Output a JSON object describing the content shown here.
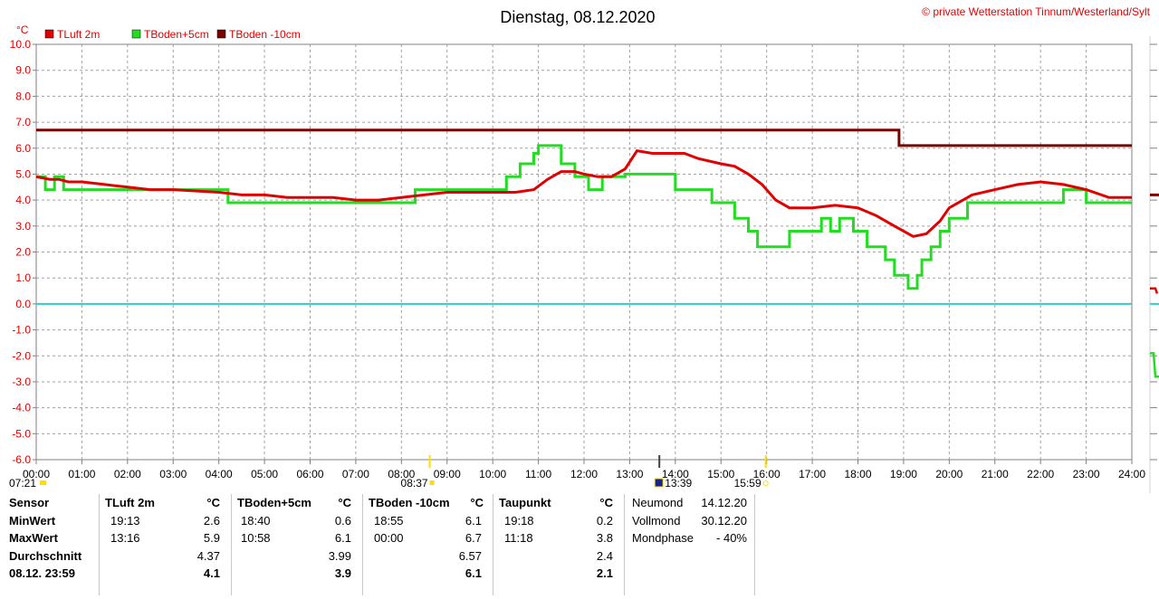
{
  "header": {
    "title": "Dienstag, 08.12.2020",
    "copyright": "© private Wetterstation Tinnum/Westerland/Sylt"
  },
  "colors": {
    "tluft": "#e00000",
    "tboden5": "#22dd22",
    "tboden10": "#7a0000",
    "zero_line": "#33cccc",
    "grid": "#a0a0a0",
    "sun_marker": "#ffdd00"
  },
  "chart_data": {
    "type": "line",
    "title": "Dienstag, 08.12.2020",
    "ylabel": "°C",
    "ylim": [
      -6,
      10
    ],
    "xlim": [
      0,
      24
    ],
    "yticks": [
      "10.0",
      "9.0",
      "8.0",
      "7.0",
      "6.0",
      "5.0",
      "4.0",
      "3.0",
      "2.0",
      "1.0",
      "0.0",
      "-1.0",
      "-2.0",
      "-3.0",
      "-4.0",
      "-5.0",
      "-6.0"
    ],
    "xticks": [
      "00:00",
      "01:00",
      "02:00",
      "03:00",
      "04:00",
      "05:00",
      "06:00",
      "07:00",
      "08:00",
      "09:00",
      "10:00",
      "11:00",
      "12:00",
      "13:00",
      "14:00",
      "15:00",
      "16:00",
      "17:00",
      "18:00",
      "19:00",
      "20:00",
      "21:00",
      "22:00",
      "23:00",
      "24:00"
    ],
    "grid": true,
    "legend": "top-left",
    "zero_line": 0.0,
    "markers": [
      {
        "label": "07:21",
        "hour": 0.0
      },
      {
        "label": "08:37",
        "hour": 8.62
      },
      {
        "label": "13:39",
        "hour": 13.65
      },
      {
        "label": "15:59",
        "hour": 15.98
      }
    ],
    "series": [
      {
        "name": "TLuft 2m",
        "x": [
          0,
          0.3,
          0.5,
          0.7,
          1.0,
          1.5,
          2.0,
          2.5,
          3.0,
          4.0,
          4.5,
          5.0,
          5.5,
          6.0,
          6.5,
          7.0,
          7.5,
          8.0,
          8.5,
          9.0,
          9.5,
          10.0,
          10.5,
          10.9,
          11.2,
          11.5,
          11.8,
          12.0,
          12.3,
          12.6,
          12.9,
          13.16,
          13.5,
          14.0,
          14.2,
          14.5,
          15.0,
          15.3,
          15.6,
          15.9,
          16.2,
          16.5,
          17.0,
          17.5,
          18.0,
          18.4,
          18.8,
          19.21,
          19.5,
          19.8,
          20.0,
          20.5,
          21.0,
          21.5,
          22.0,
          22.5,
          23.0,
          23.5,
          24.0
        ],
        "y": [
          4.9,
          4.8,
          4.8,
          4.7,
          4.7,
          4.6,
          4.5,
          4.4,
          4.4,
          4.3,
          4.2,
          4.2,
          4.1,
          4.1,
          4.1,
          4.0,
          4.0,
          4.1,
          4.2,
          4.3,
          4.3,
          4.3,
          4.3,
          4.4,
          4.8,
          5.1,
          5.1,
          5.0,
          4.9,
          4.9,
          5.2,
          5.9,
          5.8,
          5.8,
          5.8,
          5.6,
          5.4,
          5.3,
          5.0,
          4.6,
          4.0,
          3.7,
          3.7,
          3.8,
          3.7,
          3.4,
          3.0,
          2.6,
          2.7,
          3.2,
          3.7,
          4.2,
          4.4,
          4.6,
          4.7,
          4.6,
          4.4,
          4.1,
          4.1
        ]
      },
      {
        "name": "TBoden+5cm",
        "step": true,
        "x": [
          0,
          0.2,
          0.4,
          0.6,
          0.8,
          4.2,
          4.5,
          8.3,
          10.3,
          10.6,
          10.9,
          11.0,
          11.5,
          11.8,
          12.1,
          12.2,
          12.4,
          12.9,
          13.8,
          14.0,
          14.8,
          15.3,
          15.6,
          15.8,
          16.1,
          16.5,
          17.0,
          17.2,
          17.4,
          17.6,
          17.9,
          18.2,
          18.4,
          18.6,
          18.8,
          19.1,
          19.2,
          19.3,
          19.4,
          19.6,
          19.8,
          20.0,
          20.4,
          22.5,
          23.0,
          24.0
        ],
        "y": [
          4.9,
          4.4,
          4.9,
          4.4,
          4.4,
          3.9,
          3.9,
          4.4,
          4.9,
          5.4,
          5.8,
          6.1,
          5.4,
          4.9,
          4.4,
          4.4,
          4.9,
          5.0,
          5.0,
          4.4,
          3.9,
          3.3,
          2.8,
          2.2,
          2.2,
          2.8,
          2.8,
          3.3,
          2.8,
          3.3,
          2.8,
          2.2,
          2.2,
          1.7,
          1.1,
          0.6,
          0.6,
          1.1,
          1.7,
          2.2,
          2.8,
          3.3,
          3.9,
          4.4,
          3.9,
          3.9
        ]
      },
      {
        "name": "TBoden -10cm",
        "step": true,
        "x": [
          0,
          18.9,
          24.0
        ],
        "y": [
          6.7,
          6.1,
          6.1
        ]
      }
    ]
  },
  "table": {
    "sensor": {
      "header": "Sensor",
      "rows": [
        "MinWert",
        "MaxWert",
        "Durchschnitt",
        "08.12. 23:59"
      ]
    },
    "tluft": {
      "header": "TLuft 2m",
      "unit": "°C",
      "min_time": "19:13",
      "min_val": "2.6",
      "max_time": "13:16",
      "max_val": "5.9",
      "avg": "4.37",
      "current": "4.1"
    },
    "tboden5": {
      "header": "TBoden+5cm",
      "unit": "°C",
      "min_time": "18:40",
      "min_val": "0.6",
      "max_time": "10:58",
      "max_val": "6.1",
      "avg": "3.99",
      "current": "3.9"
    },
    "tboden10": {
      "header": "TBoden -10cm",
      "unit": "°C",
      "min_time": "18:55",
      "min_val": "6.1",
      "max_time": "00:00",
      "max_val": "6.7",
      "avg": "6.57",
      "current": "6.1"
    },
    "taupunkt": {
      "header": "Taupunkt",
      "unit": "°C",
      "min_time": "19:18",
      "min_val": "0.2",
      "max_time": "11:18",
      "max_val": "3.8",
      "avg": "2.4",
      "current": "2.1"
    },
    "moon": {
      "neumond_label": "Neumond",
      "neumond_date": "14.12.20",
      "vollmond_label": "Vollmond",
      "vollmond_date": "30.12.20",
      "phase_label": "Mondphase",
      "phase_value": "- 40%"
    }
  }
}
